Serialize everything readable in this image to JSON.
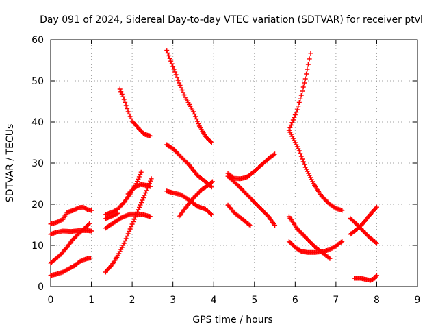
{
  "chart_data": {
    "type": "scatter",
    "title": "Day 091 of 2024, Sidereal Day-to-day VTEC variation (SDTVAR) for receiver ptvl",
    "xlabel": "GPS time / hours",
    "ylabel": "SDTVAR / TECUs",
    "xlim": [
      0,
      9
    ],
    "ylim": [
      0,
      60
    ],
    "xticks": [
      "0",
      "1",
      "2",
      "3",
      "4",
      "5",
      "6",
      "7",
      "8",
      "9"
    ],
    "yticks": [
      "0",
      "10",
      "20",
      "30",
      "40",
      "50",
      "60"
    ],
    "grid": true,
    "legend": "none",
    "marker": "plus",
    "series_color": "#ff0000",
    "series": [
      {
        "points": [
          [
            0.0,
            15.2
          ],
          [
            0.15,
            15.6
          ],
          [
            0.3,
            16.3
          ],
          [
            0.4,
            18.0
          ],
          [
            0.55,
            18.5
          ],
          [
            0.7,
            19.2
          ],
          [
            0.8,
            19.3
          ],
          [
            0.9,
            18.7
          ],
          [
            1.0,
            18.5
          ]
        ]
      },
      {
        "points": [
          [
            0.0,
            12.7
          ],
          [
            0.15,
            13.2
          ],
          [
            0.3,
            13.5
          ],
          [
            0.5,
            13.4
          ],
          [
            0.7,
            13.6
          ],
          [
            0.9,
            13.6
          ],
          [
            1.0,
            13.5
          ]
        ]
      },
      {
        "points": [
          [
            0.0,
            5.7
          ],
          [
            0.1,
            6.5
          ],
          [
            0.25,
            7.8
          ],
          [
            0.4,
            9.5
          ],
          [
            0.55,
            11.5
          ],
          [
            0.7,
            13.0
          ],
          [
            0.85,
            14.3
          ],
          [
            0.95,
            15.3
          ]
        ]
      },
      {
        "points": [
          [
            0.0,
            2.7
          ],
          [
            0.15,
            3.0
          ],
          [
            0.3,
            3.5
          ],
          [
            0.45,
            4.3
          ],
          [
            0.6,
            5.2
          ],
          [
            0.75,
            6.3
          ],
          [
            0.9,
            6.8
          ],
          [
            0.98,
            6.9
          ]
        ]
      },
      {
        "points": [
          [
            1.35,
            17.5
          ],
          [
            1.5,
            18.0
          ],
          [
            1.65,
            18.8
          ],
          [
            1.8,
            20.5
          ],
          [
            1.95,
            22.5
          ],
          [
            2.1,
            25.0
          ],
          [
            2.22,
            27.8
          ]
        ]
      },
      {
        "points": [
          [
            1.35,
            16.5
          ],
          [
            1.5,
            17.1
          ],
          [
            1.65,
            17.8
          ]
        ]
      },
      {
        "points": [
          [
            1.35,
            14.2
          ],
          [
            1.55,
            15.5
          ],
          [
            1.75,
            16.8
          ],
          [
            1.95,
            17.6
          ],
          [
            2.1,
            17.6
          ],
          [
            2.25,
            17.5
          ],
          [
            2.45,
            17.0
          ]
        ]
      },
      {
        "points": [
          [
            1.35,
            3.5
          ],
          [
            1.5,
            5.2
          ],
          [
            1.65,
            7.5
          ],
          [
            1.8,
            10.5
          ],
          [
            1.95,
            14.0
          ],
          [
            2.1,
            17.5
          ],
          [
            2.25,
            21.0
          ],
          [
            2.4,
            24.5
          ],
          [
            2.47,
            26.2
          ]
        ]
      },
      {
        "points": [
          [
            1.9,
            22.5
          ],
          [
            2.05,
            24.0
          ],
          [
            2.2,
            24.8
          ],
          [
            2.35,
            24.6
          ],
          [
            2.45,
            24.3
          ]
        ]
      },
      {
        "points": [
          [
            1.7,
            48.0
          ],
          [
            1.8,
            45.5
          ],
          [
            1.9,
            42.5
          ],
          [
            2.0,
            40.2
          ],
          [
            2.15,
            38.5
          ],
          [
            2.3,
            37.0
          ],
          [
            2.45,
            36.6
          ]
        ]
      },
      {
        "points": [
          [
            2.85,
            57.4
          ],
          [
            3.0,
            53.5
          ],
          [
            3.15,
            49.5
          ],
          [
            3.3,
            46.0
          ],
          [
            3.5,
            42.5
          ],
          [
            3.65,
            39.0
          ],
          [
            3.8,
            36.5
          ],
          [
            3.95,
            35.0
          ]
        ]
      },
      {
        "points": [
          [
            2.85,
            34.5
          ],
          [
            3.0,
            33.5
          ],
          [
            3.2,
            31.5
          ],
          [
            3.4,
            29.5
          ],
          [
            3.6,
            27.0
          ],
          [
            3.8,
            25.5
          ],
          [
            3.95,
            24.2
          ]
        ]
      },
      {
        "points": [
          [
            2.85,
            23.2
          ],
          [
            3.0,
            22.8
          ],
          [
            3.2,
            22.3
          ],
          [
            3.4,
            21.0
          ],
          [
            3.6,
            19.5
          ],
          [
            3.8,
            18.8
          ],
          [
            3.95,
            17.5
          ]
        ]
      },
      {
        "points": [
          [
            3.15,
            17.0
          ],
          [
            3.3,
            19.0
          ],
          [
            3.5,
            21.5
          ],
          [
            3.7,
            23.5
          ],
          [
            3.85,
            24.5
          ],
          [
            3.97,
            25.5
          ]
        ]
      },
      {
        "points": [
          [
            4.35,
            27.5
          ],
          [
            4.5,
            26.3
          ],
          [
            4.65,
            26.2
          ],
          [
            4.8,
            26.5
          ],
          [
            5.0,
            28.0
          ],
          [
            5.2,
            29.8
          ],
          [
            5.4,
            31.5
          ],
          [
            5.5,
            32.2
          ]
        ]
      },
      {
        "points": [
          [
            4.35,
            26.8
          ],
          [
            4.55,
            25.0
          ],
          [
            4.75,
            23.0
          ],
          [
            4.95,
            21.0
          ],
          [
            5.15,
            19.0
          ],
          [
            5.35,
            17.0
          ],
          [
            5.5,
            14.9
          ]
        ]
      },
      {
        "points": [
          [
            4.35,
            19.8
          ],
          [
            4.5,
            18.0
          ],
          [
            4.65,
            16.8
          ],
          [
            4.8,
            15.6
          ],
          [
            4.9,
            14.8
          ]
        ]
      },
      {
        "points": [
          [
            5.85,
            38.0
          ],
          [
            5.95,
            36.0
          ],
          [
            6.1,
            33.0
          ],
          [
            6.25,
            29.0
          ],
          [
            6.45,
            25.0
          ],
          [
            6.65,
            22.0
          ],
          [
            6.85,
            20.0
          ],
          [
            7.0,
            19.0
          ],
          [
            7.15,
            18.5
          ]
        ]
      },
      {
        "points": [
          [
            5.85,
            38.0
          ],
          [
            5.95,
            40.5
          ],
          [
            6.05,
            43.0
          ],
          [
            6.15,
            46.5
          ],
          [
            6.25,
            50.5
          ],
          [
            6.32,
            54.0
          ],
          [
            6.38,
            56.7
          ]
        ]
      },
      {
        "points": [
          [
            5.85,
            17.0
          ],
          [
            5.95,
            15.5
          ],
          [
            6.05,
            14.0
          ],
          [
            6.2,
            12.5
          ],
          [
            6.35,
            11.0
          ],
          [
            6.5,
            9.5
          ],
          [
            6.7,
            8.0
          ],
          [
            6.85,
            6.8
          ]
        ]
      },
      {
        "points": [
          [
            5.85,
            11.0
          ],
          [
            6.0,
            9.5
          ],
          [
            6.15,
            8.5
          ],
          [
            6.3,
            8.3
          ],
          [
            6.5,
            8.3
          ],
          [
            6.7,
            8.5
          ],
          [
            6.85,
            9.0
          ],
          [
            7.0,
            9.8
          ],
          [
            7.15,
            11.0
          ]
        ]
      },
      {
        "points": [
          [
            7.35,
            16.6
          ],
          [
            7.5,
            15.2
          ],
          [
            7.65,
            13.7
          ],
          [
            7.8,
            12.2
          ],
          [
            8.0,
            10.5
          ]
        ]
      },
      {
        "points": [
          [
            7.35,
            12.7
          ],
          [
            7.5,
            13.8
          ],
          [
            7.65,
            15.2
          ],
          [
            7.8,
            17.0
          ],
          [
            8.0,
            19.3
          ]
        ]
      },
      {
        "points": [
          [
            7.45,
            2.0
          ],
          [
            7.6,
            2.0
          ],
          [
            7.75,
            1.7
          ],
          [
            7.85,
            1.5
          ],
          [
            7.95,
            2.0
          ],
          [
            8.0,
            2.7
          ]
        ]
      }
    ]
  }
}
